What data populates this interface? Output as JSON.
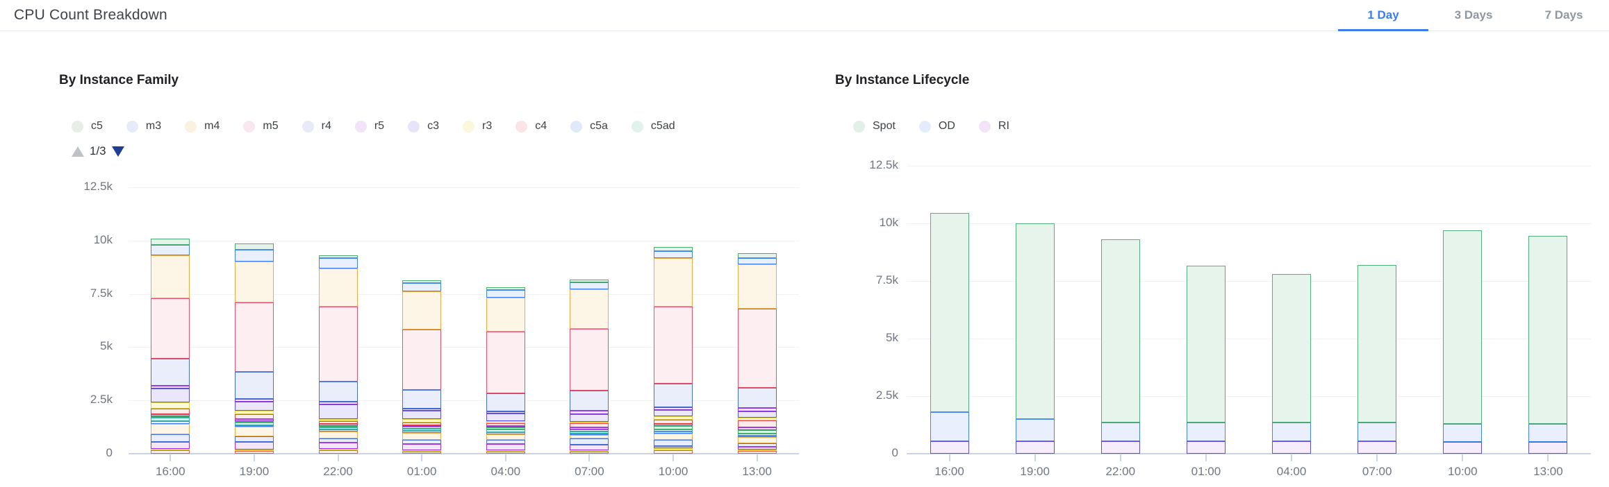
{
  "header": {
    "title": "CPU Count Breakdown",
    "tabs": [
      {
        "label": "1 Day",
        "active": true
      },
      {
        "label": "3 Days",
        "active": false
      },
      {
        "label": "7 Days",
        "active": false
      }
    ]
  },
  "colors": {
    "accent_blue": "#3b7df0",
    "tab_inactive": "#8f969e",
    "axis_text": "#6f7680",
    "gridline": "#f1f2f4",
    "axis_line": "#ccd4ec",
    "page_up_arrow": "#bfc3c9",
    "page_down_arrow": "#1d4093"
  },
  "chart_data": [
    {
      "id": "family",
      "type": "bar",
      "stacked": true,
      "title": "By Instance Family",
      "pagination": {
        "page_indicator": "1/3",
        "up_icon": "triangle-up-icon",
        "down_icon": "triangle-down-icon"
      },
      "xlabel": "",
      "ylabel": "",
      "ylim": [
        0,
        12500
      ],
      "grid": true,
      "legend_position": "top",
      "y_ticks": [
        {
          "label": "0",
          "value": 0
        },
        {
          "label": "2.5k",
          "value": 2500
        },
        {
          "label": "5k",
          "value": 5000
        },
        {
          "label": "7.5k",
          "value": 7500
        },
        {
          "label": "10k",
          "value": 10000
        },
        {
          "label": "12.5k",
          "value": 12500
        }
      ],
      "categories": [
        "16:00",
        "19:00",
        "22:00",
        "01:00",
        "04:00",
        "07:00",
        "10:00",
        "13:00"
      ],
      "series_order_note": "first series is top of stack",
      "series": [
        {
          "label": "c5",
          "fill": "#e4f3e9",
          "border": "#49ad72",
          "legend_fill": "#e3efe7",
          "values": [
            300,
            320,
            130,
            150,
            130,
            130,
            200,
            200
          ]
        },
        {
          "label": "m3",
          "fill": "#e9effc",
          "border": "#4186f0",
          "legend_fill": "#e4ecfa",
          "values": [
            500,
            550,
            480,
            380,
            330,
            340,
            300,
            300
          ]
        },
        {
          "label": "m4",
          "fill": "#fdf5e6",
          "border": "#edab49",
          "legend_fill": "#fbf1e0",
          "values": [
            2000,
            1900,
            1800,
            1800,
            1600,
            1850,
            2300,
            2100
          ]
        },
        {
          "label": "m5",
          "fill": "#fdeef2",
          "border": "#e5536f",
          "legend_fill": "#fae6ee",
          "values": [
            2850,
            3250,
            3520,
            2820,
            2900,
            2900,
            3600,
            3700
          ]
        },
        {
          "label": "r4",
          "fill": "#e9eefa",
          "border": "#4a6fd6",
          "legend_fill": "#e6ebf7",
          "values": [
            1250,
            1300,
            950,
            880,
            850,
            950,
            1100,
            950
          ]
        },
        {
          "label": "r5",
          "fill": "#f0e6fb",
          "border": "#8b36dd",
          "legend_fill": "#f1e3f8",
          "values": [
            150,
            120,
            120,
            110,
            100,
            150,
            150,
            150
          ]
        },
        {
          "label": "c3",
          "fill": "#eae7fc",
          "border": "#5f55ea",
          "legend_fill": "#e7e4fa",
          "values": [
            650,
            420,
            680,
            400,
            350,
            350,
            300,
            300
          ]
        },
        {
          "label": "r3",
          "fill": "#fcf8df",
          "border": "#e3cf43",
          "legend_fill": "#faf7dc",
          "values": [
            300,
            150,
            90,
            150,
            120,
            90,
            150,
            150
          ]
        },
        {
          "label": "c4",
          "fill": "#fdeaea",
          "border": "#ee4545",
          "legend_fill": "#fbe4e4",
          "values": [
            250,
            250,
            150,
            120,
            120,
            200,
            200,
            300
          ]
        },
        {
          "label": "c5a",
          "fill": "#f1e6fb",
          "border": "#9b30d9",
          "legend_fill": "#dfeaf8",
          "values": [
            100,
            80,
            100,
            80,
            80,
            80,
            100,
            150
          ]
        },
        {
          "label": "c5ad",
          "fill": "#e4f3e9",
          "border": "#3fae68",
          "legend_fill": "#e1f2ec",
          "values": [
            60,
            70,
            50,
            80,
            80,
            100,
            150,
            150
          ]
        },
        {
          "label": "",
          "fill": "#e2f4f3",
          "border": "#3aafa9",
          "legend_fill": "#e2f4f3",
          "values": [
            160,
            120,
            100,
            120,
            120,
            100,
            100,
            100
          ]
        },
        {
          "label": "",
          "fill": "#e9effc",
          "border": "#4186f0",
          "legend_fill": "#e9effc",
          "values": [
            130,
            80,
            100,
            100,
            100,
            80,
            100,
            60
          ]
        },
        {
          "label": "",
          "fill": "#fdf5e6",
          "border": "#edab49",
          "legend_fill": "#fdf5e6",
          "values": [
            490,
            450,
            300,
            300,
            280,
            150,
            300,
            300
          ]
        },
        {
          "label": "",
          "fill": "#e9eefa",
          "border": "#4a6fd6",
          "legend_fill": "#e9eefa",
          "values": [
            360,
            280,
            200,
            200,
            180,
            300,
            300,
            150
          ]
        },
        {
          "label": "",
          "fill": "#f3e6fb",
          "border": "#a136dd",
          "legend_fill": "#f3e6fb",
          "values": [
            320,
            350,
            300,
            300,
            300,
            250,
            100,
            150
          ]
        },
        {
          "label": "",
          "fill": "#fcf8df",
          "border": "#e3cf43",
          "legend_fill": "#fcf8df",
          "values": [
            80,
            70,
            80,
            50,
            50,
            50,
            100,
            50
          ]
        },
        {
          "label": "",
          "fill": "#fdeee7",
          "border": "#e8603c",
          "legend_fill": "#fdeee7",
          "values": [
            150,
            120,
            150,
            100,
            100,
            100,
            150,
            120
          ]
        }
      ]
    },
    {
      "id": "lifecycle",
      "type": "bar",
      "stacked": true,
      "title": "By Instance Lifecycle",
      "pagination": null,
      "xlabel": "",
      "ylabel": "",
      "ylim": [
        0,
        12500
      ],
      "grid": true,
      "legend_position": "top",
      "y_ticks": [
        {
          "label": "0",
          "value": 0
        },
        {
          "label": "2.5k",
          "value": 2500
        },
        {
          "label": "5k",
          "value": 5000
        },
        {
          "label": "7.5k",
          "value": 7500
        },
        {
          "label": "10k",
          "value": 10000
        },
        {
          "label": "12.5k",
          "value": 12500
        }
      ],
      "categories": [
        "16:00",
        "19:00",
        "22:00",
        "01:00",
        "04:00",
        "07:00",
        "10:00",
        "13:00"
      ],
      "series_order_note": "first series is top of stack",
      "series": [
        {
          "label": "Spot",
          "fill": "#e7f4ec",
          "border": "#4fb27c",
          "legend_fill": "#e2f0e8",
          "values": [
            8650,
            8500,
            7950,
            6800,
            6450,
            6850,
            8400,
            8150
          ]
        },
        {
          "label": "OD",
          "fill": "#e9effc",
          "border": "#4186f0",
          "legend_fill": "#e4ecfb",
          "values": [
            1250,
            950,
            800,
            800,
            800,
            800,
            780,
            780
          ]
        },
        {
          "label": "RI",
          "fill": "#f7ecfb",
          "border": "#5b50e0",
          "legend_fill": "#f2e3f9",
          "values": [
            550,
            550,
            550,
            550,
            550,
            550,
            520,
            520
          ]
        }
      ]
    }
  ]
}
